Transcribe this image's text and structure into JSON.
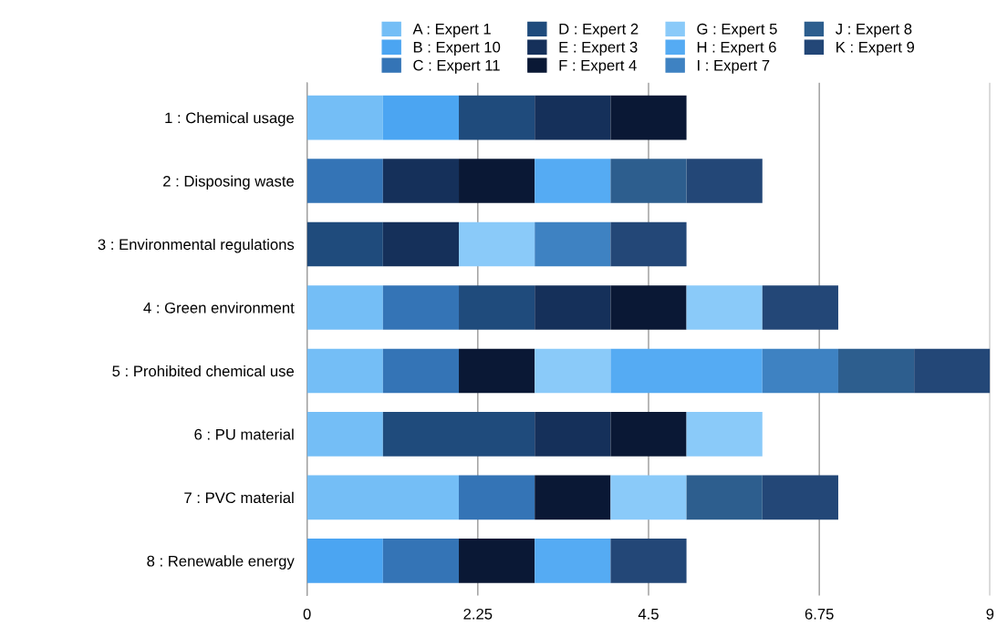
{
  "chart_data": {
    "type": "bar",
    "orientation": "horizontal",
    "stacked": true,
    "categories": [
      "1 : Chemical usage",
      "2 : Disposing waste",
      "3 : Environmental regulations",
      "4 : Green environment",
      "5 : Prohibited chemical use",
      "6 : PU material",
      "7 : PVC material",
      "8 : Renewable energy"
    ],
    "series": [
      {
        "name": "A : Expert 1",
        "color": "#74bef6",
        "values": [
          1,
          null,
          null,
          1,
          1,
          1,
          2,
          null
        ]
      },
      {
        "name": "B : Expert 10",
        "color": "#4ba5f2",
        "values": [
          1,
          null,
          null,
          null,
          null,
          null,
          null,
          1
        ]
      },
      {
        "name": "C : Expert 11",
        "color": "#3474b6",
        "values": [
          null,
          1,
          null,
          1,
          1,
          null,
          1,
          1
        ]
      },
      {
        "name": "D : Expert 2",
        "color": "#1f4b7c",
        "values": [
          1,
          null,
          1,
          1,
          null,
          2,
          null,
          null
        ]
      },
      {
        "name": "E : Expert 3",
        "color": "#15305a",
        "values": [
          1,
          1,
          1,
          1,
          null,
          1,
          null,
          null
        ]
      },
      {
        "name": "F : Expert 4",
        "color": "#0a1835",
        "values": [
          1,
          1,
          null,
          1,
          1,
          1,
          1,
          1
        ]
      },
      {
        "name": "G : Expert 5",
        "color": "#8acaf9",
        "values": [
          null,
          null,
          1,
          1,
          1,
          1,
          1,
          null
        ]
      },
      {
        "name": "H : Expert 6",
        "color": "#55abf3",
        "values": [
          null,
          1,
          null,
          null,
          2,
          null,
          null,
          1
        ]
      },
      {
        "name": "I : Expert 7",
        "color": "#3e82c2",
        "values": [
          null,
          null,
          1,
          null,
          1,
          null,
          null,
          null
        ]
      },
      {
        "name": "J : Expert 8",
        "color": "#2d5e8e",
        "values": [
          null,
          1,
          null,
          null,
          1,
          null,
          1,
          null
        ]
      },
      {
        "name": "K : Expert 9",
        "color": "#234777",
        "values": [
          null,
          1,
          1,
          1,
          1,
          null,
          1,
          1
        ]
      }
    ],
    "xlim": [
      0,
      9
    ],
    "xticks": [
      0,
      2.25,
      4.5,
      6.75,
      9
    ],
    "grid": "x",
    "legend": "top"
  }
}
